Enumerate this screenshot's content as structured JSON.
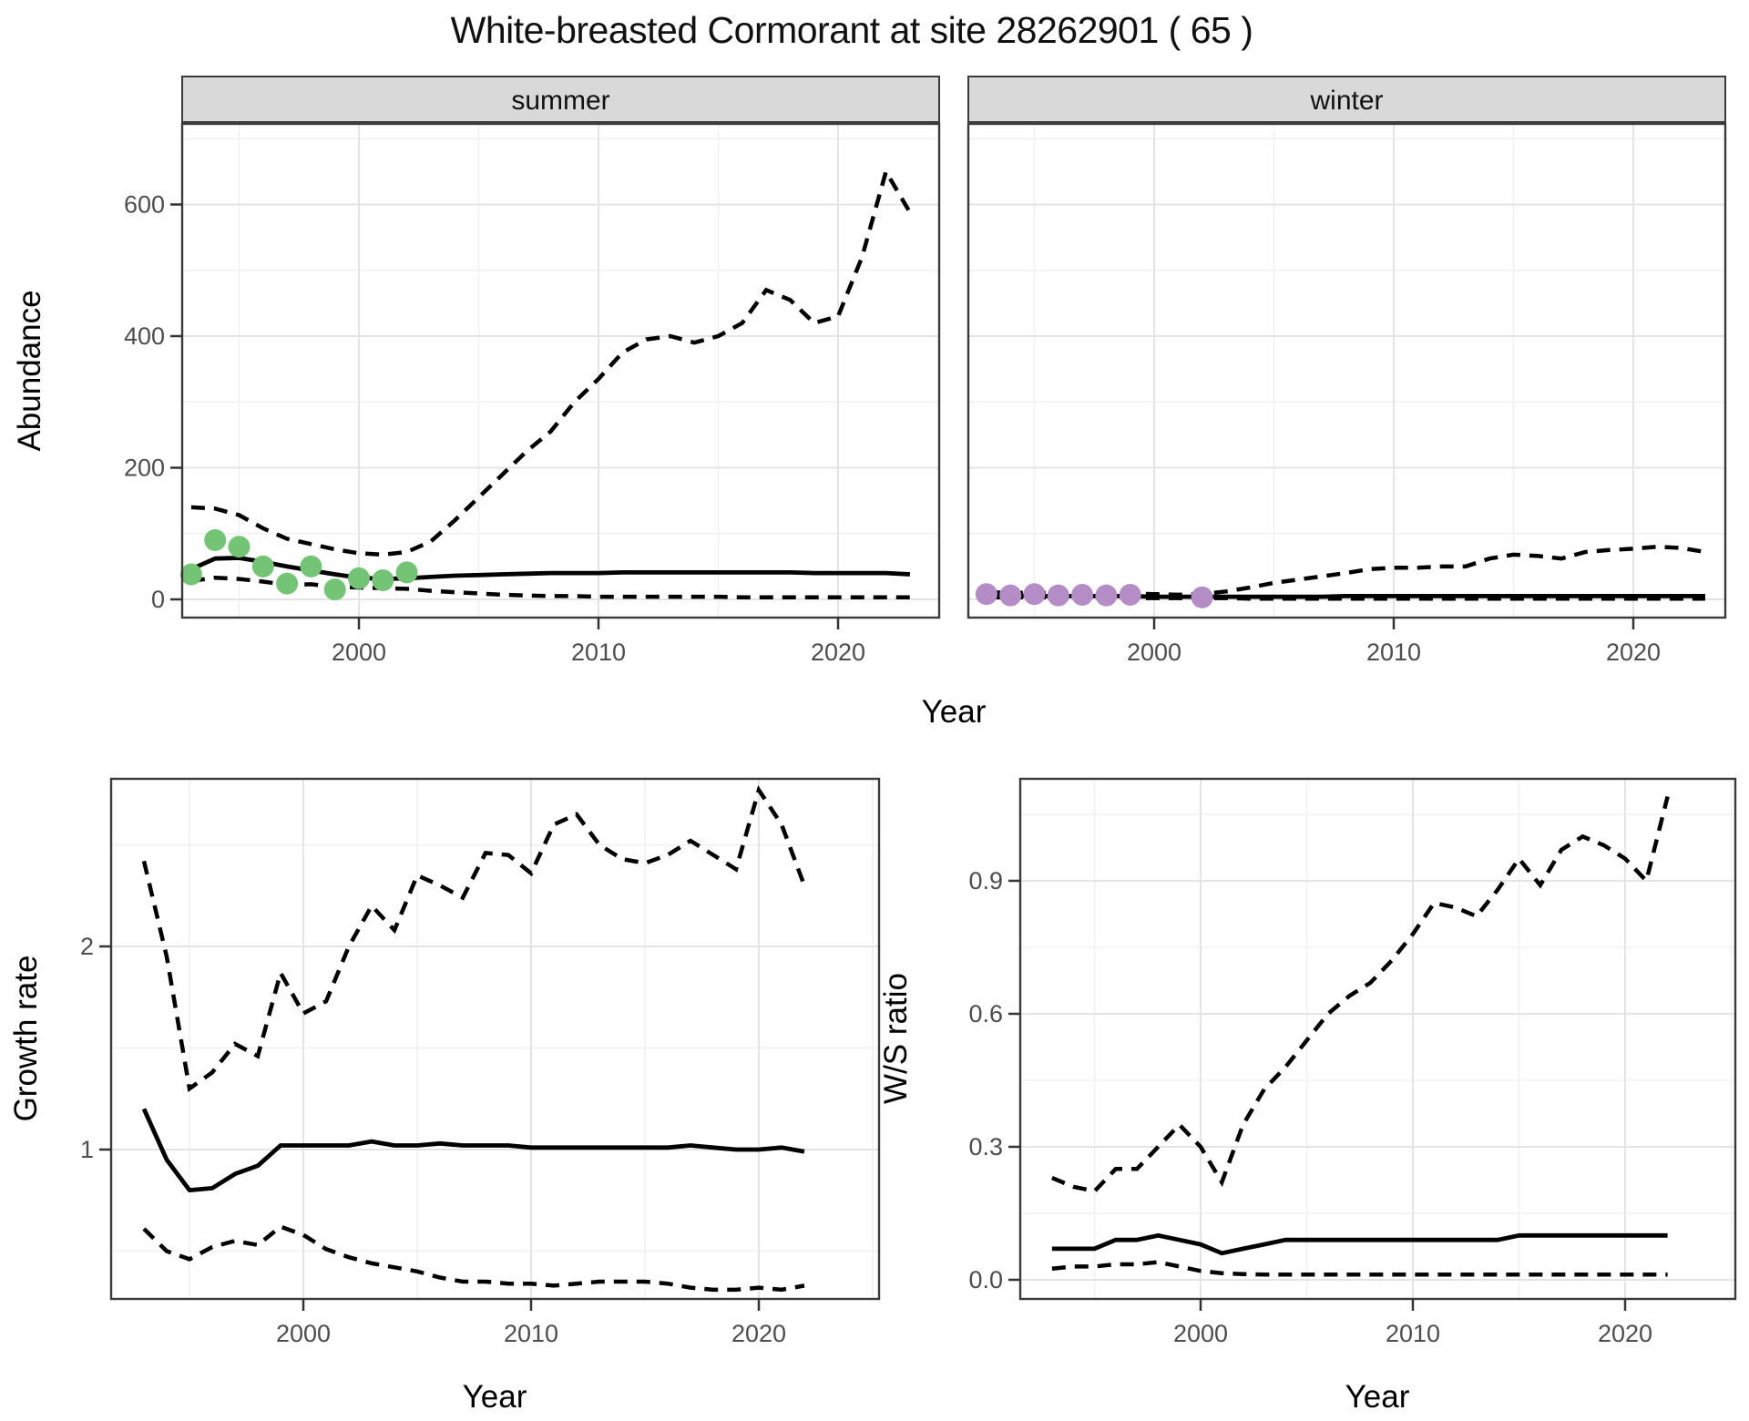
{
  "title": "White-breasted Cormorant at site 28262901 ( 65 )",
  "colors": {
    "summer_points": "#74c476",
    "winter_points": "#b58dc6",
    "strip_bg": "#d9d9d9",
    "panel_border": "#3a3a3a",
    "grid_major": "#e4e4e4",
    "grid_minor": "#f0f0f0",
    "line": "#000000",
    "tick_text": "#4d4d4d",
    "label_text": "#000000"
  },
  "chart_data": {
    "type": "line",
    "abundance": {
      "ylabel": "Abundance",
      "xlabel": "Year",
      "yticks": [
        "0",
        "200",
        "400",
        "600"
      ],
      "ytick_values": [
        0,
        200,
        400,
        600
      ],
      "y_minor": [
        100,
        300,
        500,
        700
      ],
      "xticks": [
        "2000",
        "2010",
        "2020"
      ],
      "xtick_values": [
        2000,
        2010,
        2020
      ],
      "x_minor": [
        1995,
        2005,
        2015
      ],
      "ylim": [
        -28,
        723
      ],
      "xlim": [
        1992.6,
        2024.2
      ],
      "years": [
        1993,
        1994,
        1995,
        1996,
        1997,
        1998,
        1999,
        2000,
        2001,
        2002,
        2003,
        2004,
        2005,
        2006,
        2007,
        2008,
        2009,
        2010,
        2011,
        2012,
        2013,
        2014,
        2015,
        2016,
        2017,
        2018,
        2019,
        2020,
        2021,
        2022,
        2023
      ],
      "facets": [
        {
          "label": "summer",
          "observed_years": [
            1993,
            1994,
            1995,
            1996,
            1997,
            1998,
            1999,
            2000,
            2001,
            2002
          ],
          "observed_values": [
            38,
            90,
            80,
            50,
            24,
            50,
            15,
            32,
            29,
            41
          ],
          "median": [
            46,
            62,
            63,
            57,
            50,
            44,
            38,
            33,
            31,
            32,
            34,
            36,
            37,
            38,
            39,
            40,
            40,
            40,
            41,
            41,
            41,
            41,
            41,
            41,
            41,
            41,
            40,
            40,
            40,
            40,
            38
          ],
          "upper_ci": [
            140,
            138,
            128,
            108,
            92,
            84,
            76,
            70,
            68,
            72,
            88,
            120,
            155,
            190,
            225,
            255,
            300,
            335,
            375,
            395,
            400,
            390,
            400,
            420,
            470,
            455,
            420,
            430,
            520,
            650,
            588
          ],
          "lower_ci": [
            28,
            33,
            31,
            27,
            22,
            23,
            19,
            18,
            17,
            16,
            13,
            11,
            9,
            7,
            6,
            5,
            5,
            4,
            4,
            4,
            4,
            4,
            4,
            3,
            3,
            3,
            3,
            3,
            3,
            3,
            3
          ]
        },
        {
          "label": "winter",
          "observed_years": [
            1993,
            1994,
            1995,
            1996,
            1997,
            1998,
            1999,
            2002
          ],
          "observed_values": [
            8,
            6,
            8,
            6,
            7,
            6,
            7,
            3
          ],
          "median": [
            6,
            6,
            5,
            5,
            5,
            5,
            5,
            4,
            4,
            4,
            4,
            4,
            4,
            4,
            4,
            5,
            5,
            5,
            5,
            5,
            5,
            5,
            5,
            5,
            5,
            5,
            5,
            5,
            5,
            5,
            5
          ],
          "upper_ci": [
            11,
            10,
            10,
            10,
            10,
            10,
            9,
            8,
            7,
            8,
            12,
            18,
            25,
            30,
            35,
            40,
            46,
            48,
            48,
            50,
            50,
            62,
            68,
            66,
            62,
            72,
            75,
            77,
            80,
            78,
            72
          ],
          "lower_ci": [
            3,
            3,
            3,
            3,
            3,
            3,
            2,
            2,
            2,
            2,
            2,
            1,
            1,
            1,
            1,
            1,
            1,
            1,
            1,
            1,
            1,
            1,
            1,
            1,
            1,
            1,
            1,
            1,
            1,
            1,
            1
          ]
        }
      ]
    },
    "growth_rate": {
      "ylabel": "Growth rate",
      "xlabel": "Year",
      "yticks": [
        "1",
        "2"
      ],
      "ytick_values": [
        1,
        2
      ],
      "y_minor": [
        0.5,
        1.5,
        2.5
      ],
      "xticks": [
        "2000",
        "2010",
        "2020"
      ],
      "xtick_values": [
        2000,
        2010,
        2020
      ],
      "x_minor": [
        1995,
        2005,
        2015,
        2025
      ],
      "ylim": [
        0.26,
        2.83
      ],
      "xlim": [
        1991.6,
        2025.3
      ],
      "years": [
        1993,
        1994,
        1995,
        1996,
        1997,
        1998,
        1999,
        2000,
        2001,
        2002,
        2003,
        2004,
        2005,
        2006,
        2007,
        2008,
        2009,
        2010,
        2011,
        2012,
        2013,
        2014,
        2015,
        2016,
        2017,
        2018,
        2019,
        2020,
        2021,
        2022
      ],
      "median": [
        1.2,
        0.95,
        0.8,
        0.81,
        0.88,
        0.92,
        1.02,
        1.02,
        1.02,
        1.02,
        1.04,
        1.02,
        1.02,
        1.03,
        1.02,
        1.02,
        1.02,
        1.01,
        1.01,
        1.01,
        1.01,
        1.01,
        1.01,
        1.01,
        1.02,
        1.01,
        1.0,
        1.0,
        1.01,
        0.99
      ],
      "upper_ci": [
        2.42,
        1.95,
        1.3,
        1.38,
        1.52,
        1.46,
        1.87,
        1.67,
        1.73,
        2.0,
        2.2,
        2.08,
        2.35,
        2.3,
        2.24,
        2.46,
        2.45,
        2.36,
        2.6,
        2.65,
        2.5,
        2.43,
        2.41,
        2.45,
        2.52,
        2.45,
        2.38,
        2.77,
        2.6,
        2.3
      ],
      "lower_ci": [
        0.61,
        0.5,
        0.46,
        0.52,
        0.55,
        0.53,
        0.62,
        0.58,
        0.51,
        0.47,
        0.44,
        0.42,
        0.4,
        0.37,
        0.35,
        0.35,
        0.34,
        0.34,
        0.33,
        0.34,
        0.35,
        0.35,
        0.35,
        0.34,
        0.32,
        0.31,
        0.31,
        0.32,
        0.31,
        0.33
      ]
    },
    "ws_ratio": {
      "ylabel": "W/S ratio",
      "xlabel": "Year",
      "yticks": [
        "0.0",
        "0.3",
        "0.6",
        "0.9"
      ],
      "ytick_values": [
        0,
        0.3,
        0.6,
        0.9
      ],
      "y_minor": [
        0.15,
        0.45,
        0.75,
        1.05
      ],
      "xticks": [
        "2000",
        "2010",
        "2020"
      ],
      "xtick_values": [
        2000,
        2010,
        2020
      ],
      "x_minor": [
        1995,
        2005,
        2015,
        2025
      ],
      "ylim": [
        -0.04,
        1.13
      ],
      "xlim": [
        1991.5,
        2025.2
      ],
      "years": [
        1993,
        1994,
        1995,
        1996,
        1997,
        1998,
        1999,
        2000,
        2001,
        2002,
        2003,
        2004,
        2005,
        2006,
        2007,
        2008,
        2009,
        2010,
        2011,
        2012,
        2013,
        2014,
        2015,
        2016,
        2017,
        2018,
        2019,
        2020,
        2021,
        2022
      ],
      "median": [
        0.07,
        0.07,
        0.07,
        0.09,
        0.09,
        0.1,
        0.09,
        0.08,
        0.06,
        0.07,
        0.08,
        0.09,
        0.09,
        0.09,
        0.09,
        0.09,
        0.09,
        0.09,
        0.09,
        0.09,
        0.09,
        0.09,
        0.1,
        0.1,
        0.1,
        0.1,
        0.1,
        0.1,
        0.1,
        0.1
      ],
      "upper_ci": [
        0.23,
        0.21,
        0.2,
        0.25,
        0.25,
        0.3,
        0.35,
        0.3,
        0.22,
        0.35,
        0.43,
        0.48,
        0.54,
        0.6,
        0.64,
        0.67,
        0.72,
        0.78,
        0.85,
        0.84,
        0.82,
        0.88,
        0.95,
        0.89,
        0.97,
        1.0,
        0.98,
        0.95,
        0.9,
        1.09
      ],
      "lower_ci": [
        0.025,
        0.03,
        0.03,
        0.035,
        0.035,
        0.04,
        0.03,
        0.02,
        0.015,
        0.013,
        0.012,
        0.012,
        0.012,
        0.012,
        0.012,
        0.012,
        0.012,
        0.012,
        0.012,
        0.012,
        0.012,
        0.012,
        0.012,
        0.012,
        0.012,
        0.012,
        0.012,
        0.012,
        0.012,
        0.012
      ]
    }
  }
}
